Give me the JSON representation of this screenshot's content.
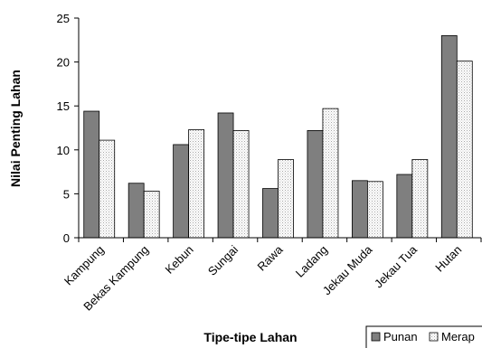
{
  "chart_data": {
    "type": "bar",
    "title": "",
    "xlabel": "Tipe-tipe Lahan",
    "ylabel": "Nilai Penting Lahan",
    "ylim": [
      0,
      25
    ],
    "yticks": [
      0,
      5,
      10,
      15,
      20,
      25
    ],
    "categories": [
      "Kampung",
      "Bekas Kampung",
      "Kebun",
      "Sungai",
      "Rawa",
      "Ladang",
      "Jekau Muda",
      "Jekau Tua",
      "Hutan"
    ],
    "series": [
      {
        "name": "Punan",
        "values": [
          14.4,
          6.2,
          10.6,
          14.2,
          5.6,
          12.2,
          6.5,
          7.2,
          23.0
        ],
        "color": "#7f7f7f",
        "pattern": "solid"
      },
      {
        "name": "Merap",
        "values": [
          11.1,
          5.3,
          12.3,
          12.2,
          8.9,
          14.7,
          6.4,
          8.9,
          20.1
        ],
        "color": "#ffffff",
        "pattern": "dotted"
      }
    ],
    "grid": false,
    "legend": {
      "position": "bottom-right",
      "labels": [
        "Punan",
        "Merap"
      ]
    }
  }
}
